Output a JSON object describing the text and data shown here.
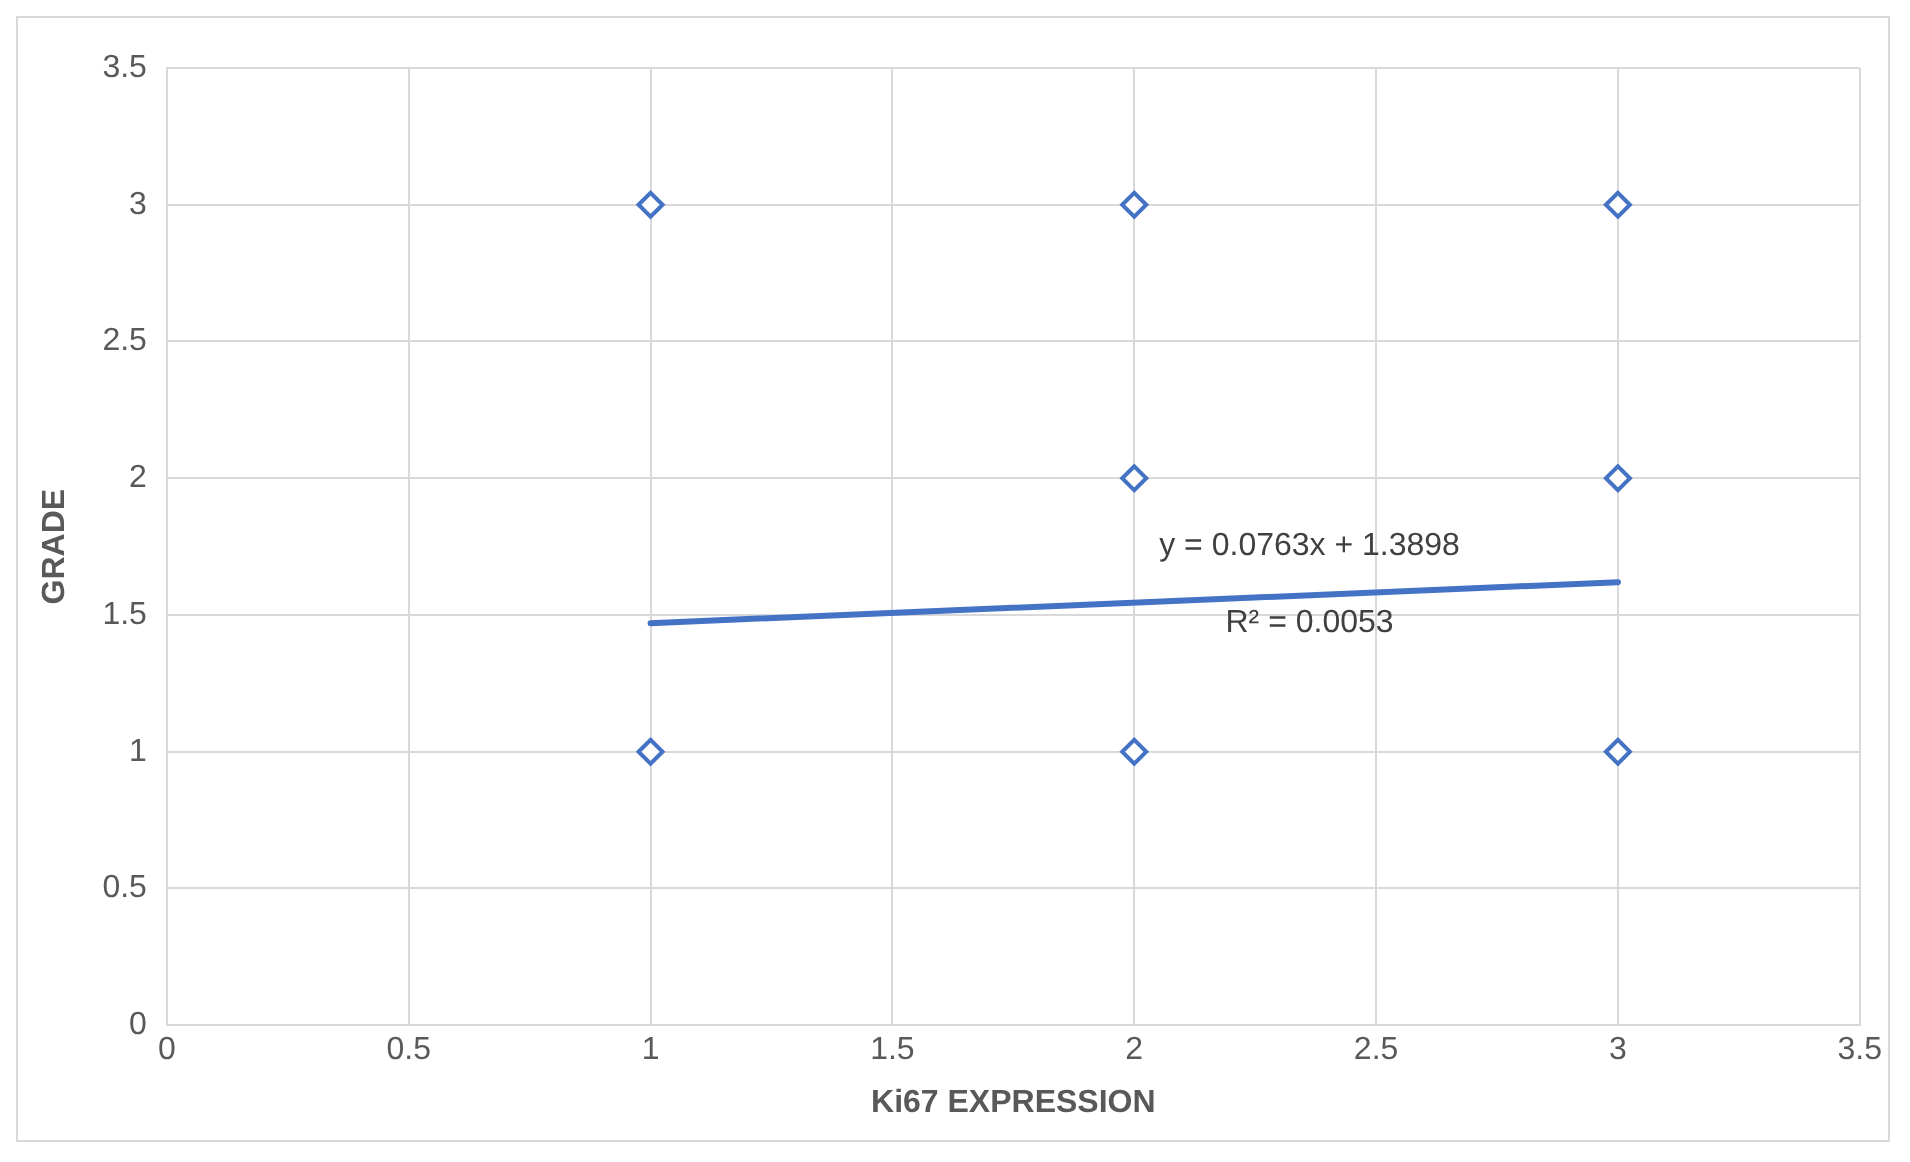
{
  "chart_data": {
    "type": "scatter",
    "xlabel": "Ki67 EXPRESSION",
    "ylabel": "GRADE",
    "series": [
      {
        "type": "scatter",
        "color": "#4472c4",
        "x": [
          1,
          1,
          2,
          2,
          2,
          3,
          3,
          3
        ],
        "values": [
          3,
          1,
          3,
          2,
          1,
          3,
          2,
          1
        ],
        "marker": "diamond"
      },
      {
        "type": "line",
        "color": "#4472c4",
        "x": [
          1,
          3
        ],
        "values": [
          1.47,
          1.62
        ],
        "marker": "none"
      }
    ],
    "xlim": [
      0,
      3.5
    ],
    "xticks": [
      0,
      0.5,
      1,
      1.5,
      2,
      2.5,
      3,
      3.5
    ],
    "ylim": [
      0,
      3.5
    ],
    "yticks": [
      0,
      0.5,
      1,
      1.5,
      2,
      2.5,
      3,
      3.5
    ],
    "grid": true,
    "legend": false,
    "annotations": [
      "y = 0.0763x + 1.3898",
      "R² = 0.0053"
    ]
  }
}
